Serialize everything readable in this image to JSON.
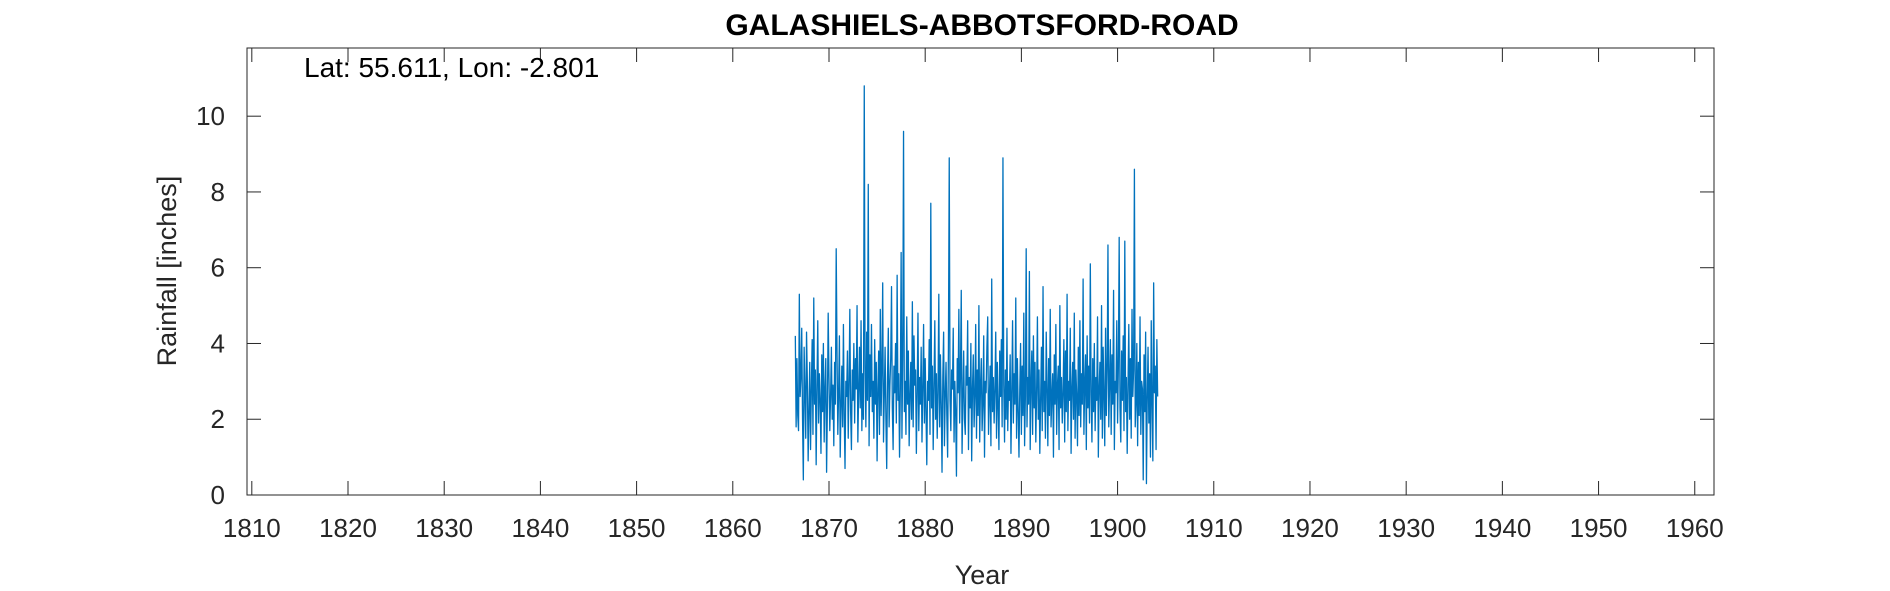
{
  "chart_data": {
    "type": "line",
    "title": "GALASHIELS-ABBOTSFORD-ROAD",
    "annotation": "Lat: 55.611, Lon: -2.801",
    "xlabel": "Year",
    "ylabel": "Rainfall [inches]",
    "xlim": [
      1809.5,
      1962
    ],
    "ylim": [
      0,
      11.8
    ],
    "xticks": [
      1810,
      1820,
      1830,
      1840,
      1850,
      1860,
      1870,
      1880,
      1890,
      1900,
      1910,
      1920,
      1930,
      1940,
      1950,
      1960
    ],
    "yticks": [
      0,
      2,
      4,
      6,
      8,
      10
    ],
    "grid": false,
    "colors": {
      "line": "#0072BD",
      "axis": "#262626"
    },
    "series": [
      {
        "sampling": "monthly",
        "start_year": 1866.5,
        "values": [
          4.2,
          1.8,
          3.6,
          2.1,
          1.7,
          5.3,
          2.6,
          3.1,
          4.4,
          2.0,
          0.4,
          3.9,
          2.7,
          1.5,
          4.3,
          3.0,
          0.9,
          2.2,
          3.5,
          1.2,
          2.8,
          4.1,
          1.6,
          5.2,
          2.4,
          3.3,
          0.8,
          2.9,
          4.6,
          1.9,
          3.2,
          2.5,
          1.1,
          3.7,
          2.2,
          4.0,
          1.4,
          2.8,
          3.6,
          0.6,
          2.3,
          4.8,
          3.1,
          1.7,
          2.6,
          3.9,
          2.0,
          2.9,
          1.3,
          3.5,
          2.4,
          6.5,
          3.8,
          1.6,
          2.7,
          4.2,
          1.0,
          2.3,
          3.4,
          1.8,
          4.5,
          2.1,
          0.7,
          3.0,
          2.6,
          3.8,
          1.5,
          2.9,
          4.9,
          2.2,
          1.2,
          3.3,
          2.5,
          4.0,
          1.9,
          3.6,
          2.8,
          5.0,
          1.4,
          2.7,
          3.9,
          2.3,
          4.6,
          1.7,
          3.2,
          2.0,
          10.8,
          3.4,
          1.8,
          4.3,
          2.5,
          8.2,
          1.3,
          3.7,
          2.6,
          4.5,
          2.2,
          3.0,
          1.5,
          4.1,
          2.4,
          3.5,
          0.9,
          2.8,
          3.8,
          1.6,
          4.9,
          2.1,
          3.3,
          5.6,
          1.4,
          2.6,
          3.9,
          2.0,
          0.7,
          3.1,
          4.4,
          1.8,
          2.9,
          3.6,
          5.5,
          2.3,
          1.2,
          3.4,
          2.7,
          4.0,
          1.9,
          5.8,
          2.5,
          3.2,
          1.0,
          2.8,
          6.4,
          1.5,
          3.7,
          9.6,
          2.2,
          3.0,
          1.6,
          4.7,
          2.4,
          3.8,
          1.3,
          2.6,
          3.5,
          2.0,
          5.1,
          1.8,
          4.2,
          2.9,
          3.3,
          1.1,
          2.7,
          4.8,
          1.7,
          3.1,
          2.4,
          3.9,
          1.4,
          2.8,
          4.5,
          1.9,
          3.6,
          2.2,
          0.8,
          3.0,
          2.5,
          4.1,
          1.6,
          7.7,
          2.3,
          3.4,
          1.2,
          2.9,
          4.6,
          2.0,
          3.2,
          1.5,
          2.7,
          5.3,
          1.8,
          3.7,
          2.4,
          0.6,
          3.1,
          4.3,
          1.3,
          2.6,
          3.5,
          2.1,
          1.0,
          3.9,
          8.9,
          2.5,
          1.7,
          3.3,
          2.8,
          4.4,
          1.4,
          3.0,
          2.2,
          0.5,
          3.6,
          2.7,
          4.9,
          1.9,
          3.2,
          5.4,
          1.1,
          2.5,
          3.8,
          2.0,
          1.6,
          3.4,
          2.9,
          4.6,
          1.2,
          3.1,
          2.3,
          4.0,
          0.9,
          2.8,
          3.7,
          1.8,
          2.6,
          4.5,
          1.5,
          3.3,
          2.1,
          5.0,
          1.4,
          2.9,
          3.6,
          1.7,
          2.4,
          4.2,
          1.0,
          3.0,
          2.7,
          3.9,
          4.7,
          1.6,
          2.5,
          3.4,
          1.3,
          5.7,
          2.2,
          3.1,
          1.9,
          2.8,
          4.3,
          1.5,
          3.5,
          2.3,
          1.2,
          3.8,
          2.6,
          4.1,
          1.8,
          8.9,
          2.9,
          1.4,
          3.3,
          2.0,
          4.4,
          1.7,
          3.0,
          2.5,
          3.7,
          1.1,
          2.7,
          4.6,
          1.9,
          3.2,
          2.4,
          5.2,
          1.5,
          3.6,
          2.2,
          1.0,
          2.8,
          4.0,
          1.6,
          3.4,
          2.1,
          4.8,
          1.3,
          2.6,
          6.5,
          1.8,
          3.1,
          2.4,
          5.9,
          1.2,
          2.9,
          3.8,
          1.6,
          4.2,
          2.3,
          3.5,
          1.4,
          2.7,
          4.7,
          2.0,
          3.3,
          1.1,
          2.5,
          3.9,
          1.7,
          5.5,
          2.2,
          3.0,
          1.5,
          4.3,
          2.8,
          1.3,
          3.6,
          2.1,
          4.9,
          1.8,
          2.6,
          3.2,
          1.0,
          3.7,
          2.4,
          4.5,
          1.6,
          2.9,
          3.4,
          1.2,
          5.0,
          2.3,
          3.1,
          1.9,
          2.7,
          4.1,
          1.4,
          3.8,
          2.2,
          5.3,
          1.7,
          3.0,
          2.5,
          4.4,
          1.1,
          2.8,
          3.5,
          2.0,
          4.8,
          1.5,
          3.3,
          2.6,
          1.3,
          3.9,
          2.1,
          4.6,
          1.8,
          3.2,
          2.4,
          5.7,
          1.6,
          2.9,
          3.7,
          1.2,
          4.2,
          2.3,
          3.4,
          1.9,
          6.1,
          2.7,
          1.4,
          3.6,
          2.2,
          4.0,
          1.7,
          3.1,
          2.5,
          4.7,
          1.0,
          2.8,
          3.5,
          2.0,
          5.0,
          1.5,
          3.9,
          2.6,
          1.3,
          4.4,
          2.1,
          3.3,
          6.6,
          1.8,
          2.9,
          4.1,
          1.6,
          3.7,
          2.4,
          5.4,
          1.2,
          3.0,
          2.7,
          4.6,
          1.9,
          3.4,
          6.8,
          2.3,
          1.4,
          3.8,
          2.5,
          4.2,
          1.7,
          6.7,
          2.2,
          3.1,
          1.1,
          2.9,
          4.5,
          2.0,
          3.6,
          1.5,
          4.9,
          2.6,
          3.3,
          8.6,
          1.8,
          2.4,
          4.0,
          1.3,
          3.5,
          2.1,
          4.7,
          1.6,
          3.0,
          2.8,
          0.4,
          3.7,
          2.2,
          4.3,
          0.3,
          2.5,
          3.9,
          1.9,
          3.2,
          1.0,
          4.6,
          2.4,
          0.9,
          5.6,
          2.7,
          3.4,
          1.2,
          4.1,
          2.6
        ]
      }
    ]
  }
}
